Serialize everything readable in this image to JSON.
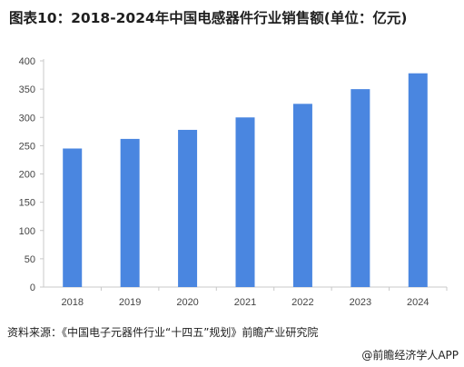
{
  "title": "图表10：2018-2024年中国电感器件行业销售额(单位：亿元)",
  "source": "资料来源：《中国电子元器件行业“十四五”规划》前瞻产业研究院",
  "brand": {
    "icon": "at-icon",
    "text": "@前瞻经济学人APP"
  },
  "colors": {
    "bar": "#4a86e0",
    "axis": "#c8c8c8"
  },
  "chart_data": {
    "type": "bar",
    "title": "图表10：2018-2024年中国电感器件行业销售额(单位：亿元)",
    "categories": [
      "2018",
      "2019",
      "2020",
      "2021",
      "2022",
      "2023",
      "2024"
    ],
    "values": [
      245,
      262,
      278,
      300,
      324,
      350,
      378
    ],
    "yticks": [
      0,
      50,
      100,
      150,
      200,
      250,
      300,
      350,
      400
    ],
    "ylim": [
      0,
      400
    ],
    "xlabel": "",
    "ylabel": "",
    "grid": false,
    "legend": "none"
  }
}
